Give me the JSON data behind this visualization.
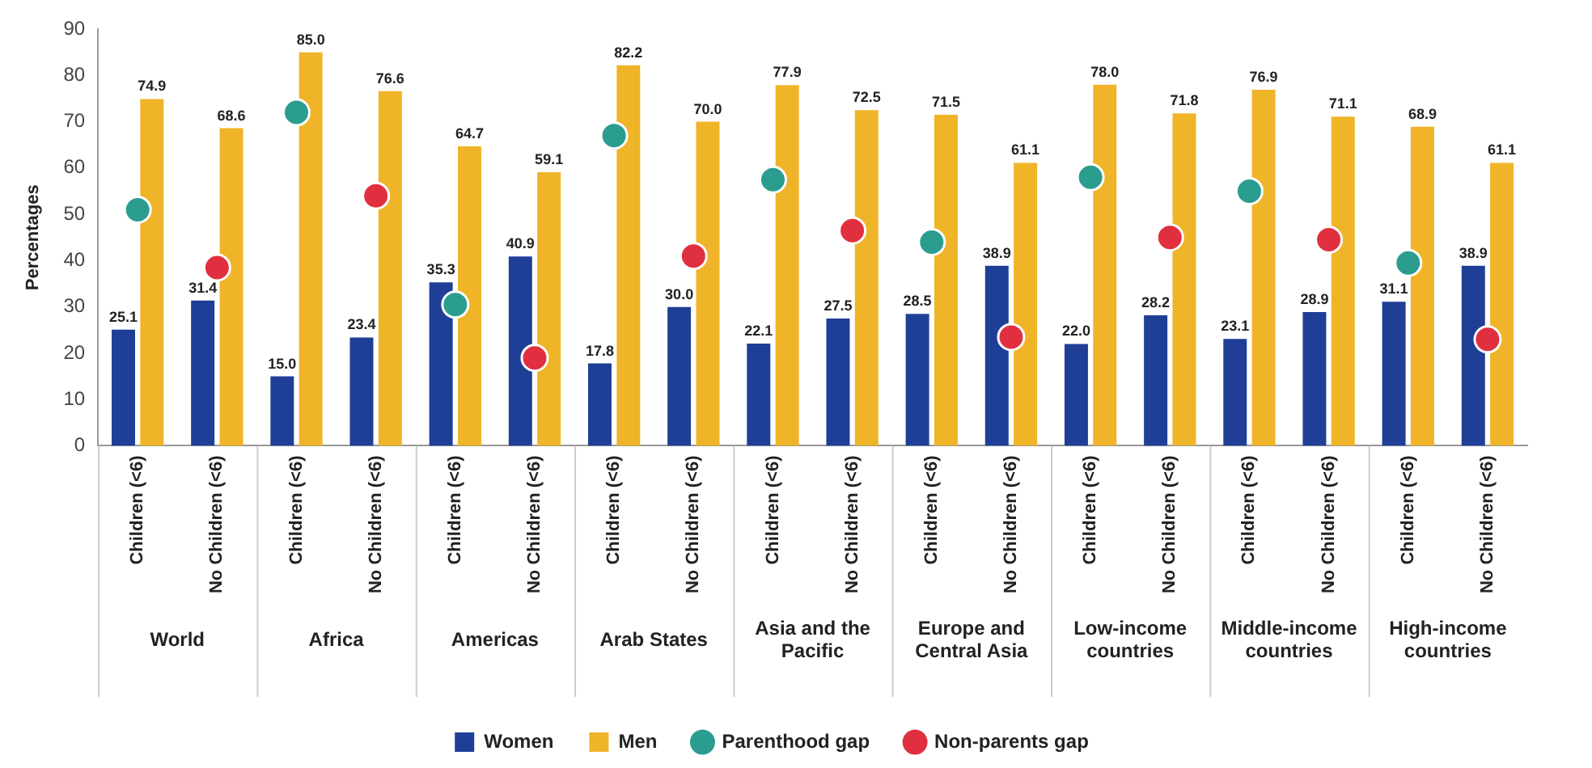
{
  "chart_data": {
    "type": "bar",
    "ylabel": "Percentages",
    "categories": [
      "Children (<6)",
      "No Children (<6)",
      "Children (<6)",
      "No Children (<6)",
      "Children (<6)",
      "No Children (<6)",
      "Children (<6)",
      "No Children (<6)",
      "Children (<6)",
      "No Children (<6)",
      "Children (<6)",
      "No Children (<6)",
      "Children (<6)",
      "No Children (<6)",
      "Children (<6)",
      "No Children (<6)",
      "Children (<6)",
      "No Children (<6)"
    ],
    "annotations": [
      "World",
      "Africa",
      "Americas",
      "Arab States",
      "Asia and the Pacific",
      "Europe and Central Asia",
      "Low-income countries",
      "Middle-income countries",
      "High-income countries"
    ],
    "series": [
      {
        "name": "Women",
        "color": "#1f3f96",
        "values": [
          25.1,
          31.4,
          15.0,
          23.4,
          35.3,
          40.9,
          17.8,
          30.0,
          22.1,
          27.5,
          28.5,
          38.9,
          22.0,
          28.2,
          23.1,
          28.9,
          31.1,
          38.9
        ],
        "value_labels": [
          "25.1",
          "31.4",
          "15.0",
          "23.4",
          "35.3",
          "40.9",
          "17.8",
          "30.0",
          "22.1",
          "27.5",
          "28.5",
          "38.9",
          "22.0",
          "28.2",
          "23.1",
          "28.9",
          "31.1",
          "38.9"
        ]
      },
      {
        "name": "Men",
        "color": "#f0b429",
        "values": [
          74.9,
          68.6,
          85.0,
          76.6,
          64.7,
          59.1,
          82.2,
          70.0,
          77.9,
          72.5,
          71.5,
          61.1,
          78.0,
          71.8,
          76.9,
          71.1,
          68.9,
          61.1
        ],
        "value_labels": [
          "74.9",
          "68.6",
          "85.0",
          "76.6",
          "64.7",
          "59.1",
          "82.2",
          "70.0",
          "77.9",
          "72.5",
          "71.5",
          "61.1",
          "78.0",
          "71.8",
          "76.9",
          "71.1",
          "68.9",
          "61.1"
        ]
      },
      {
        "name": "Parenthood gap",
        "type": "scatter",
        "marker": "circle",
        "color": "#2a9d8f",
        "values": [
          51,
          null,
          72,
          null,
          30.5,
          null,
          67,
          null,
          57.5,
          null,
          44,
          null,
          58,
          null,
          55,
          null,
          39.5,
          null
        ]
      },
      {
        "name": "Non-parents gap",
        "type": "scatter",
        "marker": "circle",
        "color": "#e03040",
        "values": [
          null,
          38.5,
          null,
          54,
          null,
          19,
          null,
          41,
          null,
          46.5,
          null,
          23.5,
          null,
          45,
          null,
          44.5,
          null,
          23
        ]
      }
    ],
    "ylim": [
      0,
      90
    ],
    "yticks": [
      0,
      10,
      20,
      30,
      40,
      50,
      60,
      70,
      80,
      90
    ],
    "grid": false,
    "legend": "bottom"
  }
}
